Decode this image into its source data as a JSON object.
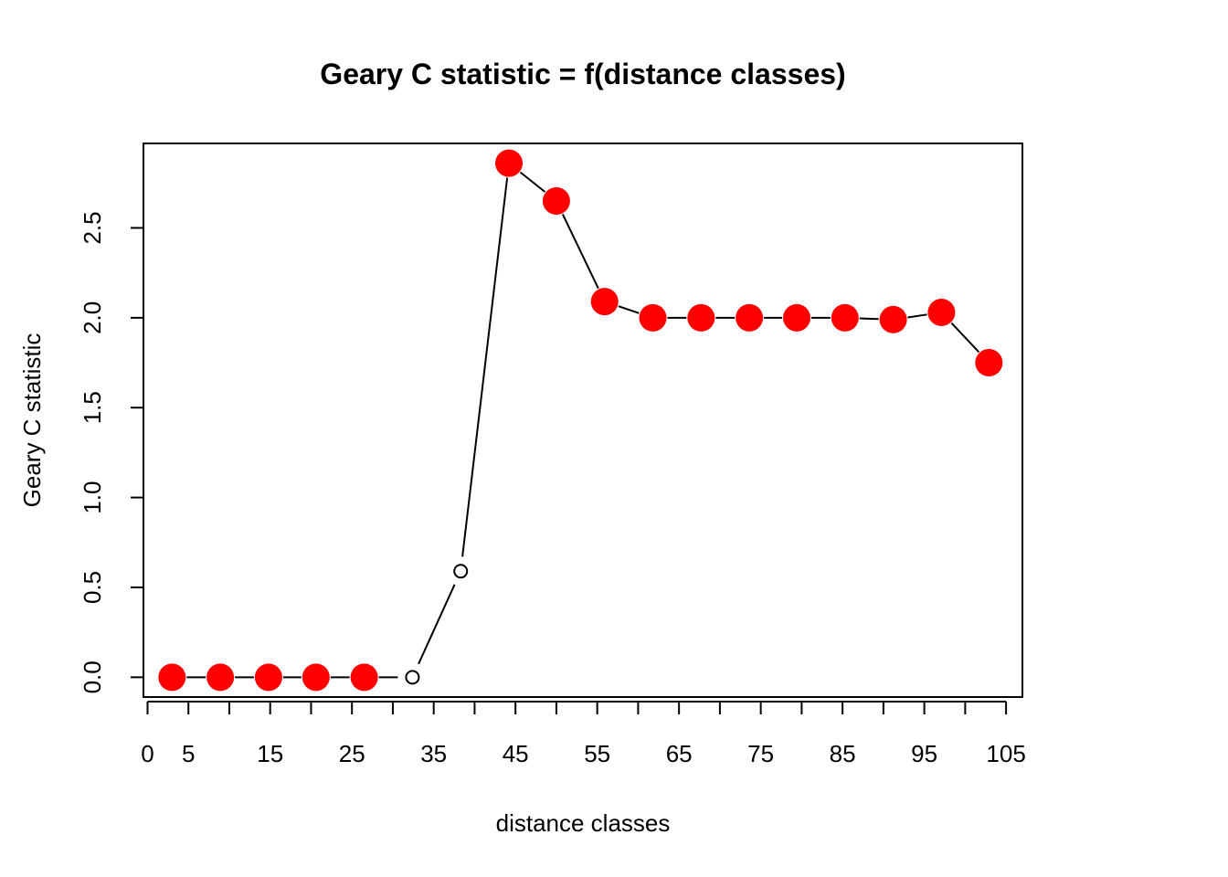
{
  "chart_data": {
    "type": "line",
    "title": "Geary C statistic = f(distance classes)",
    "xlabel": "distance classes",
    "ylabel": "Geary C statistic",
    "xlim": [
      -0.5,
      107
    ],
    "ylim": [
      -0.11,
      2.97
    ],
    "x_ticks": [
      0,
      5,
      10,
      15,
      20,
      25,
      30,
      35,
      40,
      45,
      50,
      55,
      60,
      65,
      70,
      75,
      80,
      85,
      90,
      95,
      100,
      105
    ],
    "x_tick_labels": [
      "0",
      "5",
      "",
      "15",
      "",
      "25",
      "",
      "35",
      "",
      "45",
      "",
      "55",
      "",
      "65",
      "",
      "75",
      "",
      "85",
      "",
      "95",
      "",
      "105"
    ],
    "y_ticks": [
      0.0,
      0.5,
      1.0,
      1.5,
      2.0,
      2.5
    ],
    "y_tick_labels": [
      "0.0",
      "0.5",
      "1.0",
      "1.5",
      "2.0",
      "2.5"
    ],
    "grid": false,
    "significant_color": "#ff0000",
    "points": [
      {
        "x": 3.0,
        "y": 0.0,
        "significant": true
      },
      {
        "x": 8.9,
        "y": 0.0,
        "significant": true
      },
      {
        "x": 14.8,
        "y": 0.0,
        "significant": true
      },
      {
        "x": 20.6,
        "y": 0.0,
        "significant": true
      },
      {
        "x": 26.5,
        "y": 0.0,
        "significant": true
      },
      {
        "x": 32.4,
        "y": 0.0,
        "significant": false
      },
      {
        "x": 38.3,
        "y": 0.59,
        "significant": false
      },
      {
        "x": 44.2,
        "y": 2.86,
        "significant": true
      },
      {
        "x": 50.0,
        "y": 2.65,
        "significant": true
      },
      {
        "x": 55.9,
        "y": 2.09,
        "significant": true
      },
      {
        "x": 61.8,
        "y": 2.0,
        "significant": true
      },
      {
        "x": 67.7,
        "y": 2.0,
        "significant": true
      },
      {
        "x": 73.6,
        "y": 2.0,
        "significant": true
      },
      {
        "x": 79.4,
        "y": 2.0,
        "significant": true
      },
      {
        "x": 85.3,
        "y": 2.0,
        "significant": true
      },
      {
        "x": 91.2,
        "y": 1.99,
        "significant": true
      },
      {
        "x": 97.1,
        "y": 2.03,
        "significant": true
      },
      {
        "x": 102.9,
        "y": 1.75,
        "significant": true
      }
    ]
  }
}
